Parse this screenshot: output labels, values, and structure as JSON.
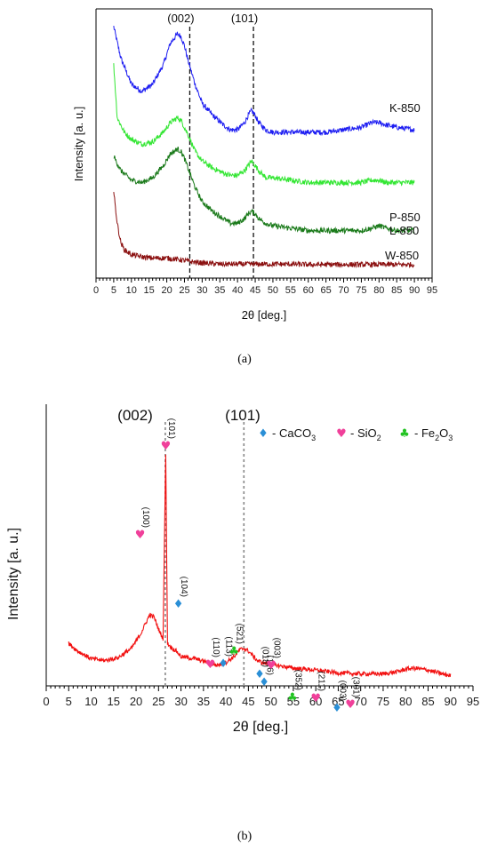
{
  "chart_data": [
    {
      "type": "line",
      "xlabel": "2θ [deg.]",
      "ylabel": "Intensity [a. u.]",
      "xlim": [
        0,
        95
      ],
      "xticks": [
        "0",
        "5",
        "10",
        "15",
        "20",
        "25",
        "30",
        "35",
        "40",
        "45",
        "50",
        "55",
        "60",
        "65",
        "70",
        "75",
        "80",
        "85",
        "90",
        "95"
      ],
      "yticks": false,
      "reference_lines": [
        {
          "label": "(002)",
          "x": 26.5
        },
        {
          "label": "(101)",
          "x": 44.5
        }
      ],
      "caption": "(a)",
      "series": [
        {
          "name": "K-850",
          "color": "#1d1df2",
          "x": [
            5,
            7,
            10,
            13,
            16,
            19,
            21,
            23,
            24,
            25,
            26,
            28,
            30,
            33,
            36,
            38,
            40,
            42,
            43,
            44,
            45,
            46,
            48,
            50,
            55,
            60,
            65,
            70,
            75,
            78,
            80,
            82,
            85,
            90
          ],
          "y": [
            100,
            87,
            76,
            73,
            76,
            84,
            93,
            97,
            96,
            92,
            86,
            76,
            68,
            63,
            59,
            57,
            57,
            60,
            63,
            65,
            63,
            60,
            57,
            56,
            56,
            56,
            56,
            57,
            58,
            60,
            60,
            59,
            58,
            57
          ]
        },
        {
          "name": "P-850",
          "color": "#33e633",
          "x": [
            5,
            6,
            8,
            10,
            13,
            16,
            19,
            21,
            23,
            24,
            25,
            26,
            28,
            30,
            33,
            36,
            38,
            40,
            42,
            43,
            44,
            45,
            46,
            48,
            50,
            55,
            60,
            65,
            70,
            75,
            78,
            80,
            82,
            85,
            90
          ],
          "y": [
            84,
            62,
            56,
            53,
            51,
            52,
            56,
            60,
            62,
            61,
            58,
            55,
            48,
            44,
            41,
            39,
            38,
            38,
            40,
            42,
            44,
            42,
            40,
            37,
            37,
            36,
            35,
            35,
            35,
            35,
            36,
            36,
            35,
            35,
            35
          ]
        },
        {
          "name": "L-850",
          "color": "#1a7a1a",
          "x": [
            5,
            7,
            10,
            13,
            16,
            19,
            21,
            23,
            24,
            25,
            26,
            28,
            30,
            33,
            36,
            38,
            40,
            42,
            43,
            44,
            45,
            46,
            48,
            50,
            55,
            60,
            65,
            70,
            75,
            78,
            80,
            82,
            85,
            90
          ],
          "y": [
            46,
            40,
            36,
            35,
            37,
            42,
            47,
            49,
            48,
            45,
            41,
            33,
            27,
            23,
            20,
            18,
            18,
            20,
            22,
            23,
            22,
            20,
            18,
            17,
            16,
            15,
            15,
            15,
            15,
            16,
            17,
            16,
            15,
            15
          ]
        },
        {
          "name": "W-850",
          "color": "#8b1010",
          "x": [
            5,
            6,
            7,
            8,
            10,
            13,
            16,
            20,
            23,
            25,
            27,
            30,
            35,
            40,
            45,
            50,
            55,
            60,
            65,
            70,
            75,
            80,
            85,
            90
          ],
          "y": [
            31,
            18,
            10,
            7,
            5,
            4,
            3.5,
            3.5,
            3,
            2.5,
            2,
            1.5,
            1,
            1,
            1,
            1,
            1,
            0.8,
            0.8,
            0.8,
            0.8,
            0.8,
            0.8,
            0.8
          ]
        }
      ]
    },
    {
      "type": "line",
      "xlabel": "2θ [deg.]",
      "ylabel": "Intensity [a. u.]",
      "xlim": [
        0,
        95
      ],
      "xticks": [
        "0",
        "5",
        "10",
        "15",
        "20",
        "25",
        "30",
        "35",
        "40",
        "45",
        "50",
        "55",
        "60",
        "65",
        "70",
        "75",
        "80",
        "85",
        "90",
        "95"
      ],
      "yticks": false,
      "reference_lines": [
        {
          "label": "(002)",
          "x": 26.5
        },
        {
          "label": "(101)",
          "x": 44.0
        }
      ],
      "legend": [
        {
          "symbol": "♦",
          "label": "CaCO",
          "sub": "3",
          "color": "#2a8fd6"
        },
        {
          "symbol": "♥",
          "label": "SiO",
          "sub": "2",
          "color": "#f0409a"
        },
        {
          "symbol": "♣",
          "label": "Fe",
          "sub": "2",
          "label2": "O",
          "sub2": "3",
          "color": "#22c322"
        }
      ],
      "caption": "(b)",
      "series": [
        {
          "name": "",
          "color": "#f21010",
          "x": [
            5,
            7,
            10,
            13,
            16,
            19,
            21,
            22,
            23,
            24,
            25,
            26,
            26.6,
            27,
            28,
            29,
            30,
            33,
            36,
            38,
            40,
            42,
            43,
            44,
            45,
            46,
            47,
            48,
            50,
            55,
            60,
            65,
            70,
            75,
            78,
            80,
            82,
            85,
            88,
            90
          ],
          "y": [
            40,
            32,
            24,
            22,
            25,
            35,
            50,
            60,
            70,
            68,
            55,
            45,
            240,
            40,
            35,
            32,
            26,
            24,
            20,
            17,
            20,
            27,
            33,
            35,
            32,
            27,
            22,
            20,
            18,
            14,
            12,
            9,
            8,
            8,
            10,
            13,
            14,
            12,
            8,
            6
          ]
        }
      ],
      "peak_markers": [
        {
          "hkl": "(100)",
          "x": 20.9,
          "phase": "SiO2"
        },
        {
          "hkl": "(101)",
          "x": 26.6,
          "phase": "SiO2"
        },
        {
          "hkl": "(104)",
          "x": 29.4,
          "phase": "CaCO3"
        },
        {
          "hkl": "(110)",
          "x": 36.5,
          "phase": "SiO2"
        },
        {
          "hkl": "(113)",
          "x": 39.4,
          "phase": "CaCO3"
        },
        {
          "hkl": "(521)",
          "x": 41.8,
          "phase": "Fe2O3"
        },
        {
          "hkl": "(018)",
          "x": 47.5,
          "phase": "CaCO3"
        },
        {
          "hkl": "(116)",
          "x": 48.5,
          "phase": "CaCO3"
        },
        {
          "hkl": "(003)",
          "x": 50.1,
          "phase": "SiO2"
        },
        {
          "hkl": "(352)",
          "x": 54.8,
          "phase": "Fe2O3"
        },
        {
          "hkl": "(211)",
          "x": 60.0,
          "phase": "SiO2"
        },
        {
          "hkl": "(003)",
          "x": 64.7,
          "phase": "CaCO3"
        },
        {
          "hkl": "(301)",
          "x": 67.7,
          "phase": "SiO2"
        }
      ]
    }
  ]
}
